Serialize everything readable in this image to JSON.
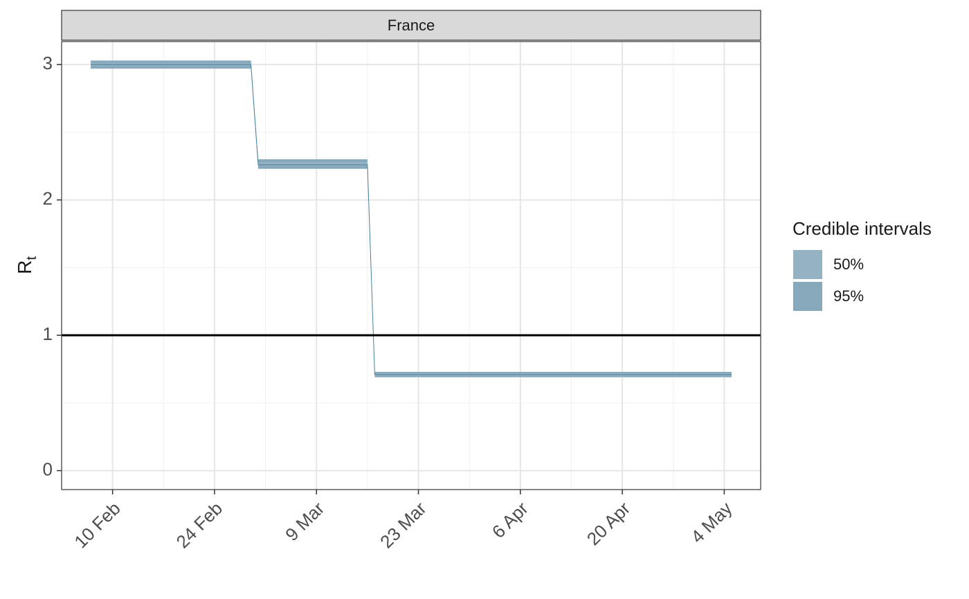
{
  "chart_data": {
    "type": "step-ribbon",
    "facet": "France",
    "ylabel": "R",
    "ylabel_sub": "t",
    "x": [
      "7 Feb",
      "29 Feb",
      "1 Mar",
      "16 Mar",
      "17 Mar",
      "5 May"
    ],
    "median": {
      "color": "#4a7f9b",
      "values": [
        3,
        3,
        2.26,
        2.26,
        0.71,
        0.71
      ]
    },
    "intervals": [
      {
        "name": "95%",
        "color": "#87a9bb",
        "lower": [
          2.97,
          2.97,
          2.23,
          2.23,
          0.69,
          0.69
        ],
        "upper": [
          3.03,
          3.03,
          2.3,
          2.3,
          0.73,
          0.73
        ]
      },
      {
        "name": "50%",
        "color": "#94b2c2",
        "lower": [
          2.99,
          2.99,
          2.25,
          2.25,
          0.7,
          0.7
        ],
        "upper": [
          3.01,
          3.01,
          2.28,
          2.28,
          0.72,
          0.72
        ]
      }
    ],
    "legend_title": "Credible intervals",
    "legend_order": [
      "50%",
      "95%"
    ],
    "hline": 1,
    "xlim": [
      "3 Feb",
      "9 May"
    ],
    "xticks": [
      "10 Feb",
      "24 Feb",
      "9 Mar",
      "23 Mar",
      "6 Apr",
      "20 Apr",
      "4 May"
    ],
    "ylim": [
      -0.14,
      3.17
    ],
    "yticks": [
      0,
      1,
      2,
      3
    ],
    "grid": true
  }
}
